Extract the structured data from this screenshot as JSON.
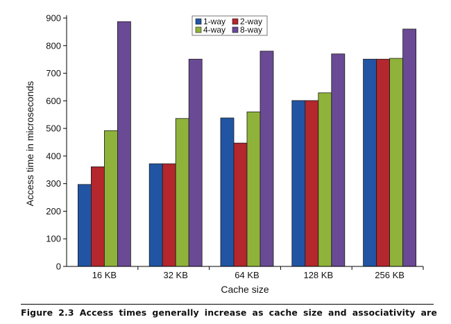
{
  "chart_data": {
    "type": "bar",
    "categories": [
      "16 KB",
      "32 KB",
      "64 KB",
      "128 KB",
      "256 KB"
    ],
    "series": [
      {
        "name": "1-way",
        "color": "#2155a4",
        "values": [
          297,
          372,
          538,
          601,
          751
        ]
      },
      {
        "name": "2-way",
        "color": "#b3272d",
        "values": [
          361,
          372,
          447,
          601,
          751
        ]
      },
      {
        "name": "4-way",
        "color": "#8fb33a",
        "values": [
          492,
          536,
          560,
          629,
          754
        ]
      },
      {
        "name": "8-way",
        "color": "#6a4a94",
        "values": [
          887,
          751,
          780,
          770,
          860
        ]
      }
    ],
    "yticks": [
      0,
      100,
      200,
      300,
      400,
      500,
      600,
      700,
      800,
      900
    ],
    "ylim": [
      0,
      900
    ],
    "xlabel": "Cache size",
    "ylabel": "Access time in microseconds",
    "legend": "top-center",
    "grid": false
  },
  "caption": {
    "text": "Figure 2.3 Access times generally increase as cache size and associativity are"
  }
}
